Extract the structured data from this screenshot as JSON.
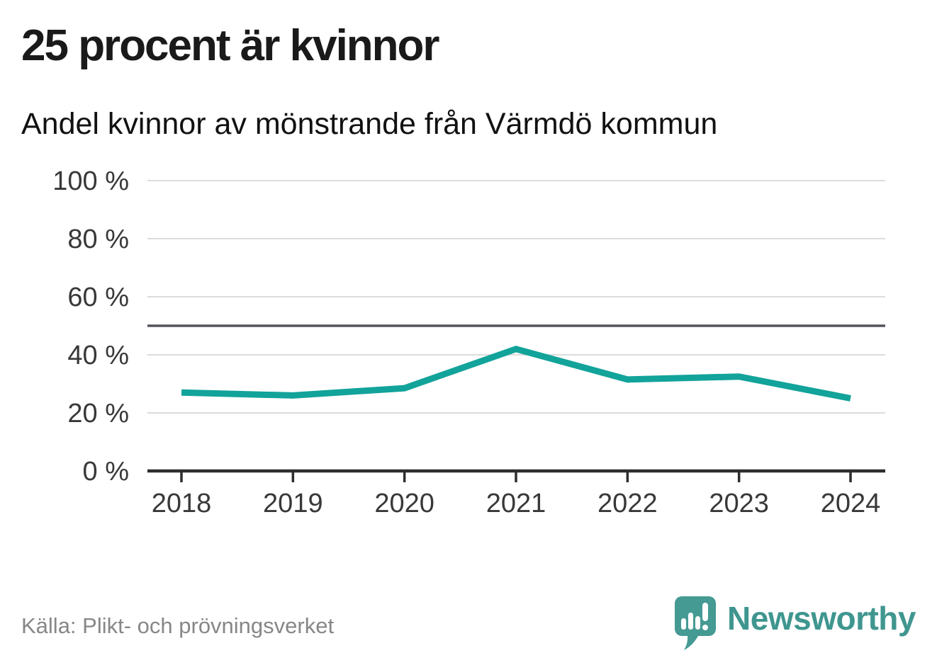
{
  "header": {
    "title": "25 procent är kvinnor",
    "subtitle": "Andel kvinnor av mönstrande från Värmdö kommun"
  },
  "chart_data": {
    "type": "line",
    "title": "25 procent är kvinnor",
    "subtitle": "Andel kvinnor av mönstrande från Värmdö kommun",
    "x": [
      2018,
      2019,
      2020,
      2021,
      2022,
      2023,
      2024
    ],
    "series": [
      {
        "name": "Andel kvinnor av mönstrande",
        "values": [
          27,
          26,
          28.5,
          42,
          31.5,
          32.5,
          25
        ]
      }
    ],
    "unit": "%",
    "ylim": [
      0,
      100
    ],
    "y_ticks": [
      0,
      20,
      40,
      60,
      80,
      100
    ],
    "y_tick_labels": [
      "0 %",
      "20 %",
      "40 %",
      "60 %",
      "80 %",
      "100 %"
    ],
    "x_tick_labels": [
      "2018",
      "2019",
      "2020",
      "2021",
      "2022",
      "2023",
      "2024"
    ],
    "reference_line": 50,
    "grid": true,
    "legend": "none",
    "line_color": "#12a39a",
    "gridline_color": "#dcdcdc",
    "reference_line_color": "#55545c",
    "axis_color": "#2d2d2d",
    "tick_label_color": "#383838"
  },
  "footer": {
    "source": "Källa: Plikt- och prövningsverket",
    "brand": "Newsworthy",
    "brand_color": "#3f968f"
  }
}
